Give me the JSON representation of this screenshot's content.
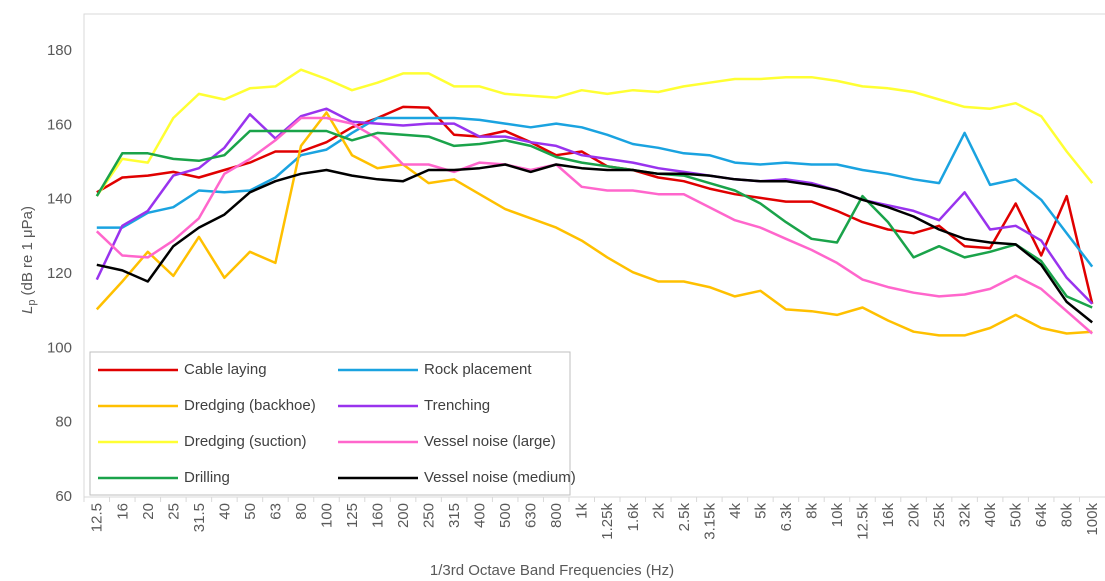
{
  "chart_data": {
    "type": "line",
    "x_label": "1/3rd Octave Band Frequencies (Hz)",
    "y_label_symbol": "L",
    "y_label_subscript": "p",
    "y_label_unit": "(dB re 1 μPa)",
    "categories": [
      "12.5",
      "16",
      "20",
      "25",
      "31.5",
      "40",
      "50",
      "63",
      "80",
      "100",
      "125",
      "160",
      "200",
      "250",
      "315",
      "400",
      "500",
      "630",
      "800",
      "1k",
      "1.25k",
      "1.6k",
      "2k",
      "2.5k",
      "3.15k",
      "4k",
      "5k",
      "6.3k",
      "8k",
      "10k",
      "12.5k",
      "16k",
      "20k",
      "25k",
      "32k",
      "40k",
      "50k",
      "64k",
      "80k",
      "100k"
    ],
    "ylim": [
      60,
      190
    ],
    "yticks": [
      60,
      80,
      100,
      120,
      140,
      160,
      180
    ],
    "grid": false,
    "legend": "lower left",
    "series": [
      {
        "name": "Cable laying",
        "color": "#e00000",
        "values": [
          142,
          146,
          146.5,
          147.5,
          146,
          148,
          150,
          153,
          153,
          155.5,
          159.5,
          162,
          165,
          164.8,
          157.5,
          157,
          158.5,
          155.5,
          152,
          153,
          149,
          148,
          146,
          145,
          143,
          141.5,
          140.5,
          139.5,
          139.5,
          137,
          134,
          132,
          131,
          133,
          127.5,
          127,
          139,
          125,
          141,
          112
        ]
      },
      {
        "name": "Rock placement",
        "color": "#1aa3e0",
        "values": [
          132.5,
          132.5,
          136.5,
          138,
          142.5,
          142,
          142.5,
          146,
          152,
          153.5,
          158,
          162,
          162,
          162,
          162,
          161.5,
          160.5,
          159.5,
          160.5,
          159.5,
          157.5,
          155,
          154,
          152.5,
          152,
          150,
          149.5,
          150,
          149.5,
          149.5,
          148,
          147,
          145.5,
          144.5,
          158,
          144,
          145.5,
          140,
          131,
          122
        ]
      },
      {
        "name": "Dredging (backhoe)",
        "color": "#ffc000",
        "values": [
          110.5,
          118,
          126,
          119.5,
          130,
          119,
          126,
          123,
          154.5,
          163.5,
          152,
          148.5,
          149.5,
          144.5,
          145.5,
          141.5,
          137.5,
          135,
          132.5,
          129,
          124.5,
          120.5,
          118,
          118,
          116.5,
          114,
          115.5,
          110.5,
          110,
          109,
          111,
          107.5,
          104.5,
          103.5,
          103.5,
          105.5,
          109,
          105.5,
          104,
          104.5
        ]
      },
      {
        "name": "Trenching",
        "color": "#9933ee",
        "values": [
          118.5,
          133,
          137,
          146.5,
          148.5,
          154,
          163,
          156.5,
          162.5,
          164.5,
          161,
          160.5,
          160,
          160.5,
          160.5,
          157,
          157,
          155.5,
          154.5,
          152,
          151,
          150,
          148.5,
          147.5,
          146.5,
          145.5,
          145,
          145.5,
          144.5,
          142.5,
          140,
          138.5,
          137,
          134.5,
          142,
          132,
          133,
          129,
          119,
          112
        ]
      },
      {
        "name": "Dredging (suction)",
        "color": "#ffff33",
        "values": [
          141,
          151,
          150,
          162,
          168.5,
          167,
          170,
          170.5,
          175,
          172.5,
          169.5,
          171.5,
          174,
          174,
          170.5,
          170.5,
          168.5,
          168,
          167.5,
          169.5,
          168.5,
          169.5,
          169,
          170.5,
          171.5,
          172.5,
          172.5,
          173,
          173,
          172,
          170.5,
          170,
          169,
          167,
          165,
          164.5,
          166,
          162.5,
          153,
          144.5
        ]
      },
      {
        "name": "Vessel noise (large)",
        "color": "#ff66cc",
        "values": [
          131.5,
          125,
          124.5,
          129,
          135,
          147,
          151,
          156,
          162,
          162,
          160.5,
          156.5,
          149.5,
          149.5,
          147.5,
          150,
          149.5,
          148,
          149.5,
          143.5,
          142.5,
          142.5,
          141.5,
          141.5,
          138,
          134.5,
          132.5,
          129.5,
          126.5,
          123,
          118.5,
          116.5,
          115,
          114,
          114.5,
          116,
          119.5,
          116,
          110,
          104
        ]
      },
      {
        "name": "Drilling",
        "color": "#1aa34a",
        "values": [
          141,
          152.5,
          152.5,
          151,
          150.5,
          152,
          158.5,
          158.5,
          158.5,
          158.5,
          156,
          158,
          157.5,
          157,
          154.5,
          155,
          156,
          154.5,
          151.5,
          150,
          149,
          148,
          147,
          146.5,
          144.5,
          142.5,
          139,
          134,
          129.5,
          128.5,
          141,
          134,
          124.5,
          127.5,
          124.5,
          126,
          128,
          123.5,
          114,
          111
        ]
      },
      {
        "name": "Vessel noise (medium)",
        "color": "#000000",
        "values": [
          122.5,
          121,
          118,
          127.5,
          132.5,
          136,
          142,
          145,
          147,
          148,
          146.5,
          145.5,
          145,
          148,
          148,
          148.5,
          149.5,
          147.5,
          149.5,
          148.5,
          148,
          148,
          147,
          147,
          146.5,
          145.5,
          145,
          145,
          144,
          142.5,
          140,
          138,
          135.5,
          132,
          129.5,
          128.5,
          128,
          122.5,
          112.5,
          107
        ]
      }
    ]
  }
}
